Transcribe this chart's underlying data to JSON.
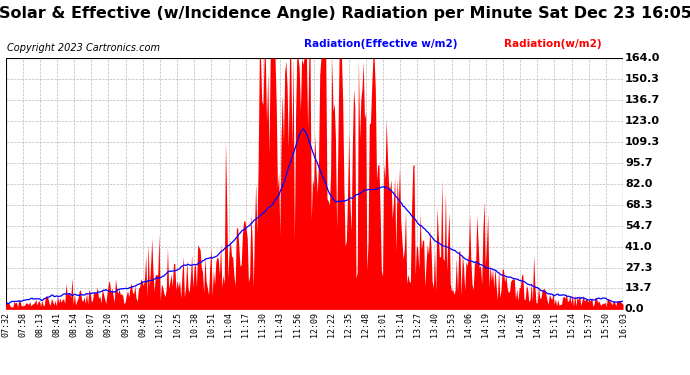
{
  "title": "Solar & Effective (w/Incidence Angle) Radiation per Minute Sat Dec 23 16:05",
  "copyright": "Copyright 2023 Cartronics.com",
  "legend_effective": "Radiation(Effective w/m2)",
  "legend_solar": "Radiation(w/m2)",
  "legend_effective_color": "blue",
  "legend_solar_color": "red",
  "yticks": [
    0.0,
    13.7,
    27.3,
    41.0,
    54.7,
    68.3,
    82.0,
    95.7,
    109.3,
    123.0,
    136.7,
    150.3,
    164.0
  ],
  "ymax": 164.0,
  "ymin": 0.0,
  "background_color": "#ffffff",
  "plot_bg_color": "#ffffff",
  "grid_color": "#aaaaaa",
  "bar_color": "red",
  "line_color": "blue",
  "title_fontsize": 11.5,
  "copyright_fontsize": 7,
  "xtick_fontsize": 6,
  "ytick_fontsize": 8,
  "xticks": [
    "07:32",
    "07:58",
    "08:13",
    "08:41",
    "08:54",
    "09:07",
    "09:20",
    "09:33",
    "09:46",
    "10:12",
    "10:25",
    "10:38",
    "10:51",
    "11:04",
    "11:17",
    "11:30",
    "11:43",
    "11:56",
    "12:09",
    "12:22",
    "12:35",
    "12:48",
    "13:01",
    "13:14",
    "13:27",
    "13:40",
    "13:53",
    "14:06",
    "14:19",
    "14:32",
    "14:45",
    "14:58",
    "15:11",
    "15:24",
    "15:37",
    "15:50",
    "16:03"
  ]
}
